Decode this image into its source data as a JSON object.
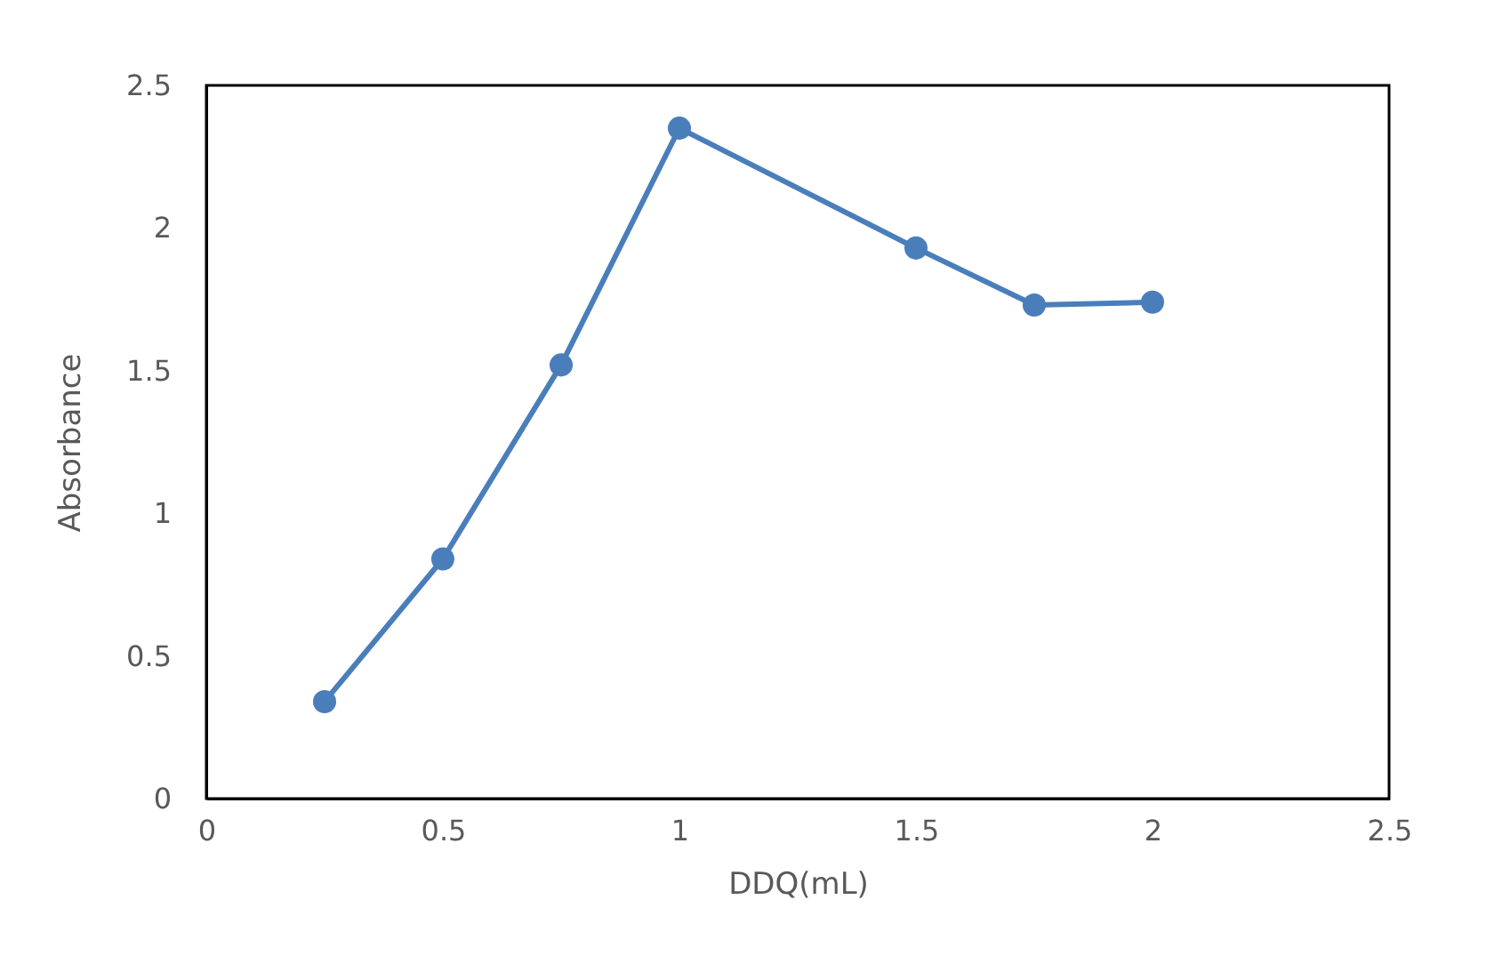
{
  "chart_data": {
    "type": "line",
    "xlabel": "DDQ(mL)",
    "ylabel": "Absorbance",
    "x": [
      0.25,
      0.5,
      0.75,
      1,
      1.5,
      1.75,
      2
    ],
    "series": [
      {
        "color": "#4a7ebb",
        "values": [
          0.34,
          0.84,
          1.52,
          2.35,
          1.93,
          1.73,
          1.74
        ]
      }
    ],
    "xlim": [
      0,
      2.5
    ],
    "xticks": [
      0,
      0.5,
      1,
      1.5,
      2,
      2.5
    ],
    "ylim": [
      0,
      2.5
    ],
    "yticks": [
      0,
      0.5,
      1,
      1.5,
      2,
      2.5
    ],
    "marker": "circle",
    "line_style": "solid",
    "grid": false
  }
}
